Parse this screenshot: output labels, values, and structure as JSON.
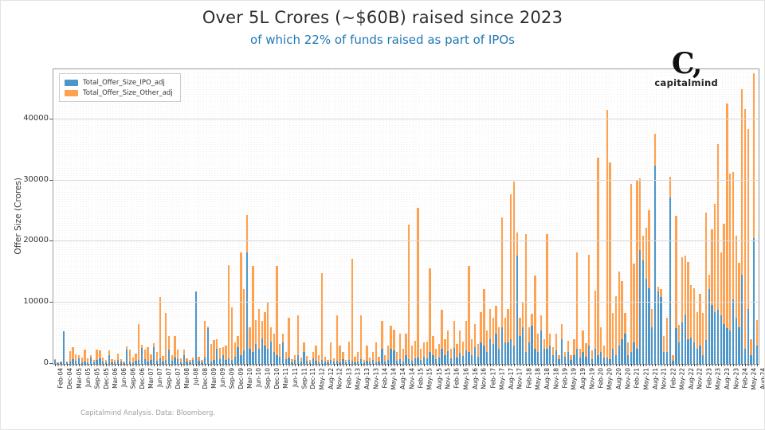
{
  "title": "Over 5L Crores (~$60B) raised since 2023",
  "subtitle": "of which 22% of funds raised as part of IPOs",
  "logo": {
    "mark": "C,",
    "word": "capitalmind"
  },
  "footer": "Capitalmind Analysis. Data: Bloomberg.",
  "chart_data": {
    "type": "bar",
    "stacked": true,
    "grid": true,
    "legend_position": "upper left",
    "ylabel": "Offer Size (Crores)",
    "xlabel": "",
    "ylim": [
      0,
      48200
    ],
    "yticks": [
      0,
      10000,
      20000,
      30000,
      40000
    ],
    "colors": {
      "ipo": "#4e96c8",
      "other": "#ffa14e"
    },
    "label_every": 3,
    "tick_labels": [
      "Feb-04",
      "Dec-04",
      "Mar-05",
      "Jun-05",
      "Sep-05",
      "Dec-05",
      "Mar-06",
      "Jun-06",
      "Sep-06",
      "Dec-06",
      "Mar-07",
      "Jun-07",
      "Sep-07",
      "Dec-07",
      "Mar-08",
      "Jul-08",
      "Dec-08",
      "Mar-09",
      "Jun-09",
      "Sep-09",
      "Dec-09",
      "Mar-10",
      "Jun-10",
      "Sep-10",
      "Dec-10",
      "Mar-11",
      "Jun-11",
      "Sep-11",
      "Dec-11",
      "May-12",
      "Aug-12",
      "Nov-12",
      "Feb-13",
      "May-13",
      "Aug-13",
      "Nov-13",
      "Feb-14",
      "May-14",
      "Aug-14",
      "Nov-14",
      "Feb-15",
      "May-15",
      "Aug-15",
      "Nov-15",
      "Feb-16",
      "May-16",
      "Aug-16",
      "Nov-16",
      "Feb-17",
      "May-17",
      "Aug-17",
      "Nov-17",
      "Feb-18",
      "May-18",
      "Aug-18",
      "Nov-18",
      "Feb-19",
      "May-19",
      "Aug-19",
      "Nov-19",
      "Feb-20",
      "May-20",
      "Aug-20",
      "Nov-20",
      "Feb-21",
      "May-21",
      "Aug-21",
      "Nov-21",
      "Feb-22",
      "May-22",
      "Aug-22",
      "Nov-22",
      "Feb-23",
      "May-23",
      "Aug-23",
      "Nov-23",
      "Feb-24",
      "May-24",
      "Aug-24"
    ],
    "series": [
      {
        "name": "Total_Offer_Size_IPO_adj",
        "values": [
          600,
          150,
          300,
          5300,
          250,
          400,
          800,
          500,
          900,
          300,
          400,
          250,
          1000,
          300,
          600,
          900,
          400,
          200,
          1500,
          300,
          250,
          700,
          350,
          150,
          2300,
          400,
          300,
          500,
          700,
          2600,
          800,
          400,
          600,
          2700,
          500,
          900,
          400,
          600,
          2400,
          500,
          1100,
          800,
          300,
          1500,
          400,
          250,
          600,
          11900,
          500,
          300,
          1100,
          5800,
          400,
          700,
          2500,
          800,
          1500,
          600,
          900,
          700,
          1200,
          2800,
          1500,
          2200,
          18300,
          2500,
          2000,
          3300,
          2500,
          4200,
          3000,
          2500,
          3600,
          2000,
          1500,
          1200,
          3500,
          800,
          1000,
          300,
          600,
          1500,
          400,
          2000,
          500,
          300,
          900,
          500,
          300,
          600,
          400,
          250,
          700,
          350,
          500,
          300,
          800,
          250,
          600,
          500,
          300,
          400,
          800,
          250,
          500,
          350,
          600,
          300,
          450,
          2500,
          400,
          600,
          2500,
          2200,
          500,
          800,
          400,
          1500,
          800,
          500,
          900,
          1000,
          700,
          1200,
          900,
          2000,
          1500,
          800,
          1000,
          2500,
          1400,
          2100,
          900,
          2600,
          1100,
          1800,
          1300,
          2200,
          2000,
          1500,
          2800,
          1200,
          3500,
          3000,
          2000,
          4000,
          3200,
          5000,
          2500,
          6000,
          3500,
          3500,
          4000,
          3000,
          17700,
          4500,
          6000,
          2000,
          3500,
          6200,
          2500,
          2000,
          5500,
          2500,
          2500,
          3000,
          1500,
          2200,
          800,
          4000,
          1200,
          2000,
          600,
          1500,
          2500,
          1000,
          2000,
          1200,
          3000,
          800,
          2500,
          1500,
          2000,
          1000,
          1000,
          800,
          2500,
          1500,
          3000,
          4000,
          5000,
          1500,
          2000,
          3500,
          2500,
          18600,
          17000,
          14000,
          12400,
          6000,
          32500,
          11800,
          11000,
          2000,
          2000,
          27200,
          500,
          5900,
          3500,
          6800,
          8100,
          4000,
          4300,
          3500,
          2500,
          3000,
          1500,
          3900,
          12200,
          9600,
          8500,
          8900,
          7900,
          6500,
          5900,
          5500,
          10500,
          7500,
          6000,
          14600,
          2500,
          9000,
          1500,
          20600,
          3000
        ]
      },
      {
        "name": "Total_Offer_Size_Other_adj",
        "values": [
          200,
          100,
          150,
          0,
          150,
          1700,
          1900,
          1100,
          500,
          800,
          1900,
          700,
          500,
          300,
          1700,
          1300,
          700,
          400,
          700,
          500,
          350,
          1000,
          450,
          300,
          600,
          1900,
          800,
          1200,
          5800,
          500,
          1600,
          2300,
          1000,
          700,
          1500,
          10000,
          900,
          7700,
          2100,
          900,
          3500,
          1500,
          600,
          800,
          500,
          350,
          400,
          0,
          700,
          400,
          6000,
          300,
          2800,
          3200,
          1500,
          1800,
          1200,
          2400,
          15200,
          8500,
          2300,
          1700,
          16800,
          10000,
          6100,
          3500,
          14000,
          3900,
          6500,
          2800,
          5500,
          7500,
          2400,
          3000,
          14500,
          2000,
          1500,
          1200,
          6500,
          500,
          900,
          6500,
          600,
          1500,
          800,
          400,
          1100,
          2500,
          1200,
          14200,
          800,
          450,
          2800,
          550,
          7400,
          2700,
          1200,
          400,
          3000,
          16700,
          900,
          1600,
          7100,
          450,
          2500,
          650,
          1400,
          3200,
          750,
          4500,
          1100,
          2400,
          3700,
          3400,
          1500,
          4200,
          2100,
          3500,
          22000,
          2500,
          2900,
          24500,
          1800,
          2300,
          2700,
          13700,
          3000,
          1700,
          2200,
          6300,
          2600,
          3400,
          1600,
          4400,
          2100,
          3700,
          2400,
          4800,
          14000,
          2500,
          3700,
          2000,
          5000,
          9200,
          3500,
          5000,
          4300,
          4500,
          3500,
          18000,
          4000,
          5500,
          23800,
          26800,
          3800,
          3000,
          4000,
          19300,
          2500,
          2000,
          12000,
          3000,
          2500,
          1500,
          18800,
          2000,
          1200,
          2800,
          700,
          2500,
          800,
          1800,
          900,
          2500,
          15800,
          1500,
          3500,
          2200,
          14800,
          1400,
          9500,
          32300,
          4000,
          2000,
          40600,
          32200,
          5800,
          9600,
          12100,
          9500,
          3300,
          2000,
          27500,
          12900,
          27500,
          11800,
          4000,
          8300,
          12800,
          3000,
          5100,
          800,
          1300,
          2500,
          5600,
          3400,
          1000,
          18300,
          2900,
          10700,
          9600,
          12700,
          8600,
          8900,
          6000,
          8500,
          6800,
          20800,
          2400,
          12400,
          17700,
          27100,
          10400,
          16400,
          36700,
          25700,
          20900,
          13500,
          10500,
          30300,
          39200,
          29400,
          2500,
          27000,
          4200
        ]
      }
    ]
  }
}
